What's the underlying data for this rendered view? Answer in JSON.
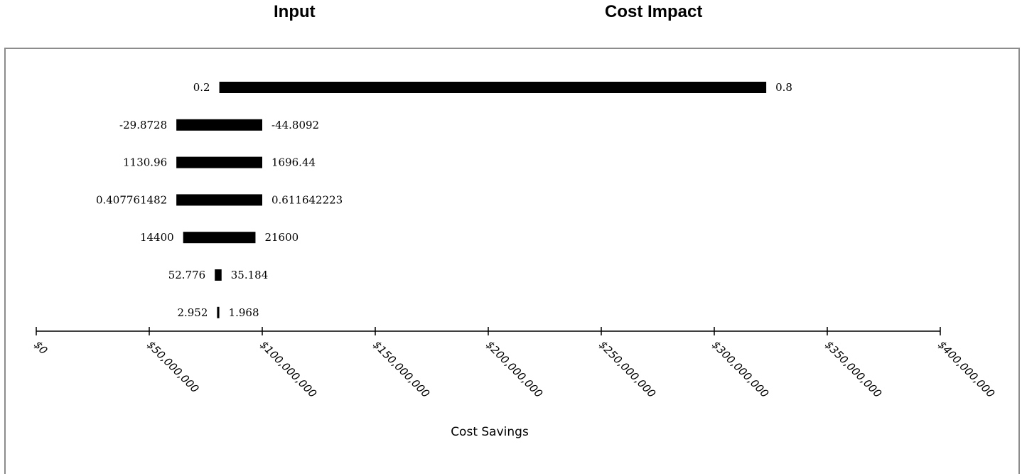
{
  "headers": {
    "input": "Input",
    "cost_impact": "Cost Impact"
  },
  "chart_data": {
    "type": "bar",
    "subtype": "tornado",
    "title": "",
    "xlabel": "Cost Savings",
    "xlim": [
      0,
      400000000
    ],
    "xticks": [
      0,
      50000000,
      100000000,
      150000000,
      200000000,
      250000000,
      300000000,
      350000000,
      400000000
    ],
    "xtick_labels": [
      "$0",
      "$50,000,000",
      "$100,000,000",
      "$150,000,000",
      "$200,000,000",
      "$250,000,000",
      "$300,000,000",
      "$350,000,000",
      "$400,000,000"
    ],
    "grid": false,
    "legend": "none",
    "bar_color": "#000000",
    "bars": [
      {
        "low_label": "0.2",
        "high_label": "0.8",
        "start": 81000000,
        "end": 323000000
      },
      {
        "low_label": "-29.8728",
        "high_label": "-44.8092",
        "start": 62000000,
        "end": 100000000
      },
      {
        "low_label": "1130.96",
        "high_label": "1696.44",
        "start": 62000000,
        "end": 100000000
      },
      {
        "low_label": "0.407761482",
        "high_label": "0.611642223",
        "start": 62000000,
        "end": 100000000
      },
      {
        "low_label": "14400",
        "high_label": "21600",
        "start": 65000000,
        "end": 97000000
      },
      {
        "low_label": "52.776",
        "high_label": "35.184",
        "start": 79000000,
        "end": 82000000
      },
      {
        "low_label": "2.952",
        "high_label": "1.968",
        "start": 80000000,
        "end": 81000000
      }
    ]
  }
}
